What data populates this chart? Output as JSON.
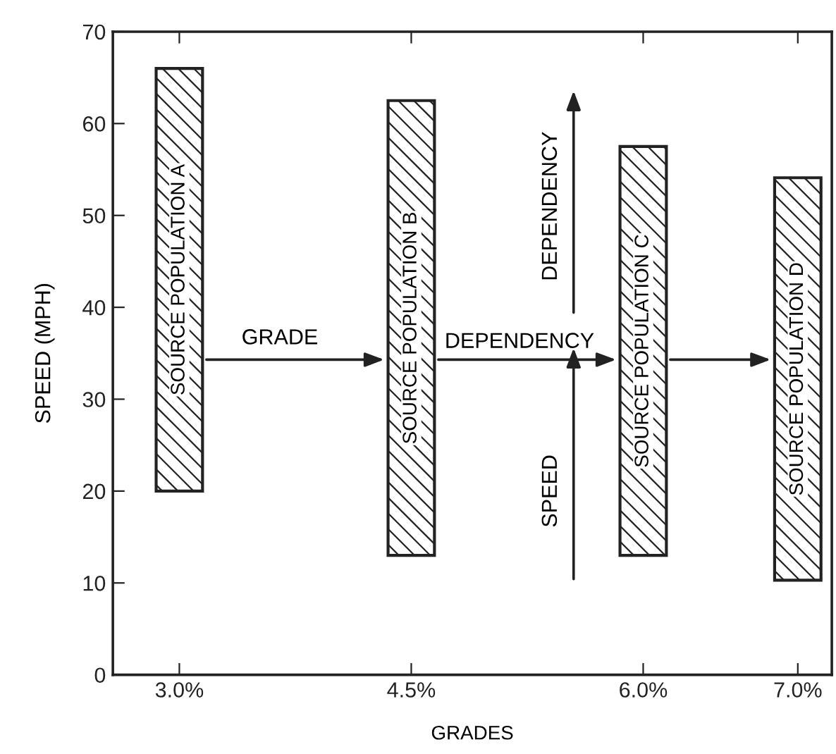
{
  "chart_data": {
    "type": "bar",
    "xlabel": "GRADES",
    "ylabel": "SPEED (MPH)",
    "x": [
      3.0,
      4.5,
      6.0,
      7.0
    ],
    "base": [
      20,
      13,
      13,
      10.3
    ],
    "values": [
      46,
      49.5,
      44.5,
      43.8
    ],
    "color": "#222222",
    "xlim": [
      2.57,
      7.22
    ],
    "xticks": [
      {
        "value": 3.0,
        "label": "3.0%"
      },
      {
        "value": 4.5,
        "label": "4.5%"
      },
      {
        "value": 6.0,
        "label": "6.0%"
      },
      {
        "value": 7.0,
        "label": "7.0%"
      }
    ],
    "ylim": [
      0,
      70
    ],
    "yticks": [
      0,
      10,
      20,
      30,
      40,
      50,
      60,
      70
    ],
    "grid": false,
    "legend": false,
    "annotations": [
      "SOURCE POPULATION A",
      "SOURCE POPULATION B",
      "SOURCE POPULATION C",
      "SOURCE POPULATION D",
      "GRADE",
      "DEPENDENCY",
      "DEPENDENCY",
      "SPEED"
    ]
  }
}
